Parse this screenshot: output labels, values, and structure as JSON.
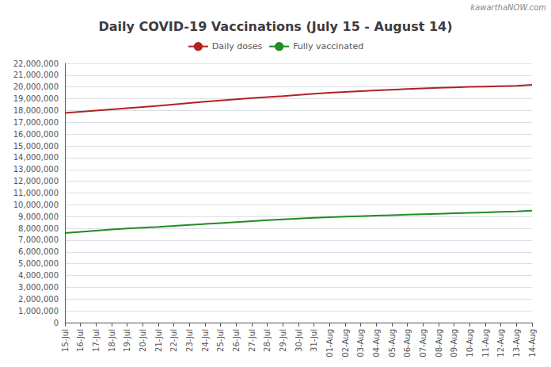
{
  "chart_data": {
    "type": "line",
    "title": "Daily COVID-19 Vaccinations (July 15 - August 14)",
    "annotations": [
      "kawarthaNOW.com"
    ],
    "categories": [
      "15-Jul",
      "16-Jul",
      "17-Jul",
      "18-Jul",
      "19-Jul",
      "20-Jul",
      "21-Jul",
      "22-Jul",
      "23-Jul",
      "24-Jul",
      "25-Jul",
      "26-Jul",
      "27-Jul",
      "28-Jul",
      "29-Jul",
      "30-Jul",
      "31-Jul",
      "01-Aug",
      "02-Aug",
      "03-Aug",
      "04-Aug",
      "05-Aug",
      "06-Aug",
      "07-Aug",
      "08-Aug",
      "09-Aug",
      "10-Aug",
      "11-Aug",
      "12-Aug",
      "13-Aug",
      "14-Aug"
    ],
    "series": [
      {
        "name": "Daily doses",
        "color": "#b22222",
        "values": [
          17800000,
          17900000,
          18000000,
          18100000,
          18200000,
          18300000,
          18400000,
          18520000,
          18640000,
          18750000,
          18860000,
          18960000,
          19050000,
          19140000,
          19230000,
          19330000,
          19430000,
          19510000,
          19580000,
          19650000,
          19710000,
          19770000,
          19830000,
          19880000,
          19930000,
          19970000,
          20010000,
          20040000,
          20070000,
          20100000,
          20180000
        ]
      },
      {
        "name": "Fully vaccinated",
        "color": "#228B22",
        "values": [
          7600000,
          7700000,
          7800000,
          7900000,
          7990000,
          8060000,
          8130000,
          8210000,
          8290000,
          8370000,
          8450000,
          8530000,
          8610000,
          8690000,
          8760000,
          8830000,
          8900000,
          8950000,
          9000000,
          9040000,
          9080000,
          9120000,
          9160000,
          9200000,
          9240000,
          9280000,
          9320000,
          9360000,
          9400000,
          9440000,
          9510000
        ]
      }
    ],
    "ylim": [
      0,
      22000000
    ],
    "yticks": [
      0,
      {
        "value": 1000000,
        "label": "1,000,000"
      },
      {
        "value": 2000000,
        "label": "2,000,000"
      },
      {
        "value": 3000000,
        "label": "3,000,000"
      },
      {
        "value": 4000000,
        "label": "4,000,000"
      },
      {
        "value": 5000000,
        "label": "5,000,000"
      },
      {
        "value": 6000000,
        "label": "6,000,000"
      },
      {
        "value": 7000000,
        "label": "7,000,000"
      },
      {
        "value": 8000000,
        "label": "8,000,000"
      },
      {
        "value": 9000000,
        "label": "9,000,000"
      },
      {
        "value": 10000000,
        "label": "10,000,000"
      },
      {
        "value": 11000000,
        "label": "11,000,000"
      },
      {
        "value": 12000000,
        "label": "12,000,000"
      },
      {
        "value": 13000000,
        "label": "13,000,000"
      },
      {
        "value": 14000000,
        "label": "14,000,000"
      },
      {
        "value": 15000000,
        "label": "15,000,000"
      },
      {
        "value": 16000000,
        "label": "16,000,000"
      },
      {
        "value": 17000000,
        "label": "17,000,000"
      },
      {
        "value": 18000000,
        "label": "18,000,000"
      },
      {
        "value": 19000000,
        "label": "19,000,000"
      },
      {
        "value": 20000000,
        "label": "20,000,000"
      },
      {
        "value": 21000000,
        "label": "21,000,000"
      },
      {
        "value": 22000000,
        "label": "22,000,000"
      }
    ],
    "grid": true,
    "legend": "top"
  }
}
